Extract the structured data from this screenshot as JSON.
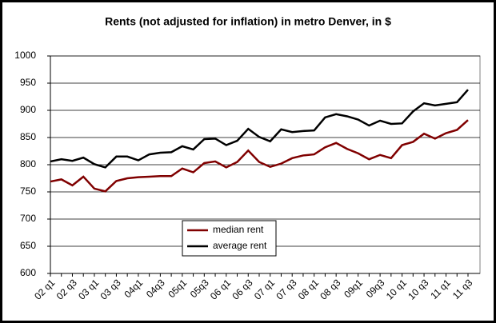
{
  "chart_data": {
    "type": "line",
    "title": "Rents (not adjusted for inflation) in metro Denver, in $",
    "categories": [
      "02 q1",
      null,
      "02 q3",
      null,
      "03 q1",
      null,
      "03 q3",
      null,
      "04q1",
      null,
      "04q3",
      null,
      "05q1",
      null,
      "05q3",
      null,
      "06 q1",
      null,
      "06 q3",
      null,
      "07 q1",
      null,
      "07 q3",
      null,
      "08 q1",
      null,
      "08 q3",
      null,
      "09q1",
      null,
      "09q3",
      null,
      "10 q1",
      null,
      "10 q3",
      null,
      "11 q1",
      null,
      "11 q3"
    ],
    "series": [
      {
        "name": "median rent",
        "color": "#800000",
        "values": [
          769,
          773,
          762,
          778,
          756,
          751,
          770,
          775,
          777,
          778,
          779,
          779,
          793,
          786,
          803,
          806,
          795,
          805,
          826,
          805,
          796,
          802,
          812,
          817,
          819,
          832,
          840,
          829,
          821,
          810,
          818,
          812,
          836,
          842,
          857,
          848,
          858,
          864,
          882
        ]
      },
      {
        "name": "average rent",
        "color": "#000000",
        "values": [
          806,
          810,
          807,
          813,
          801,
          795,
          815,
          815,
          808,
          819,
          822,
          823,
          834,
          828,
          847,
          848,
          836,
          844,
          866,
          851,
          843,
          865,
          860,
          862,
          863,
          887,
          893,
          889,
          883,
          872,
          881,
          875,
          876,
          898,
          913,
          909,
          912,
          915,
          938
        ]
      }
    ],
    "ylim": [
      600,
      1000
    ],
    "yticks": [
      600,
      650,
      700,
      750,
      800,
      850,
      900,
      950,
      1000
    ],
    "grid": true,
    "legend": "lower center"
  }
}
